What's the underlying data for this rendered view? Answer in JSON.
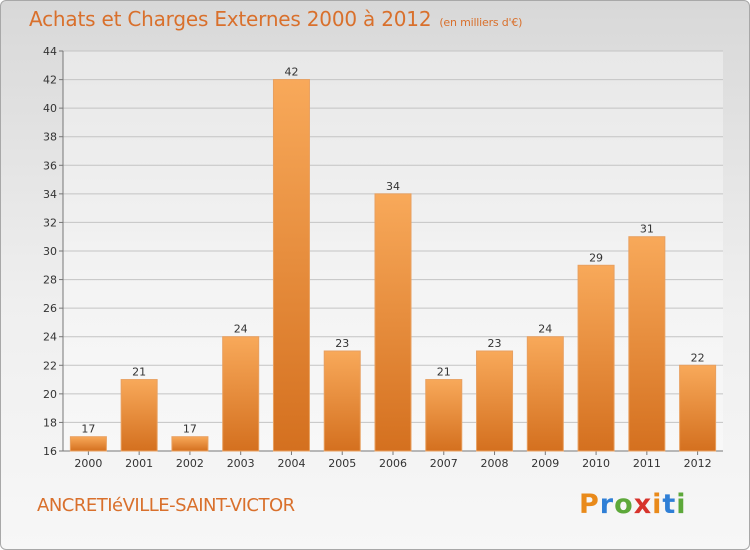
{
  "title": "Achats et Charges Externes 2000 à 2012",
  "subtitle": "(en milliers d'€)",
  "commune": "ANCRETIéVILLE-SAINT-VICTOR",
  "brand": {
    "letters": [
      "P",
      "r",
      "o",
      "x",
      "i",
      "t",
      "i"
    ],
    "colors": [
      "#e98a1a",
      "#2f7fd6",
      "#5da83a",
      "#d7332c",
      "#e98a1a",
      "#2f7fd6",
      "#5da83a"
    ]
  },
  "colors": {
    "bar_top": "#f8a95a",
    "bar_bottom": "#d4701f",
    "accent": "#d9702c"
  },
  "chart_data": {
    "type": "bar",
    "title": "Achats et Charges Externes 2000 à 2012",
    "subtitle": "(en milliers d'€)",
    "categories": [
      "2000",
      "2001",
      "2002",
      "2003",
      "2004",
      "2005",
      "2006",
      "2007",
      "2008",
      "2009",
      "2010",
      "2011",
      "2012"
    ],
    "values": [
      17,
      21,
      17,
      24,
      42,
      23,
      34,
      21,
      23,
      24,
      29,
      31,
      22
    ],
    "ylim": [
      16,
      44
    ],
    "yticks": [
      16,
      18,
      20,
      22,
      24,
      26,
      28,
      30,
      32,
      34,
      36,
      38,
      40,
      42,
      44
    ],
    "grid": true,
    "xlabel": "",
    "ylabel": ""
  }
}
